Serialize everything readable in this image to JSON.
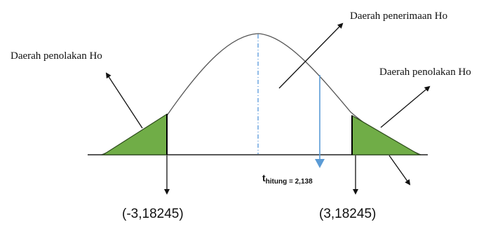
{
  "labels": {
    "acceptance_region": "Daerah penerimaan Ho",
    "rejection_left": "Daerah  penolakan Ho",
    "rejection_right": "Daerah penolakan Ho",
    "t_hitung_main": "t",
    "t_hitung_sub": "hitung = 2,138",
    "critical_left": "(-3,18245)",
    "critical_right": "(3,18245)"
  },
  "colors": {
    "curve": "#555555",
    "rejection_fill": "#70ad47",
    "rejection_stroke": "#2e4d1c",
    "t_marker": "#5b9bd5",
    "axis": "#222222"
  }
}
